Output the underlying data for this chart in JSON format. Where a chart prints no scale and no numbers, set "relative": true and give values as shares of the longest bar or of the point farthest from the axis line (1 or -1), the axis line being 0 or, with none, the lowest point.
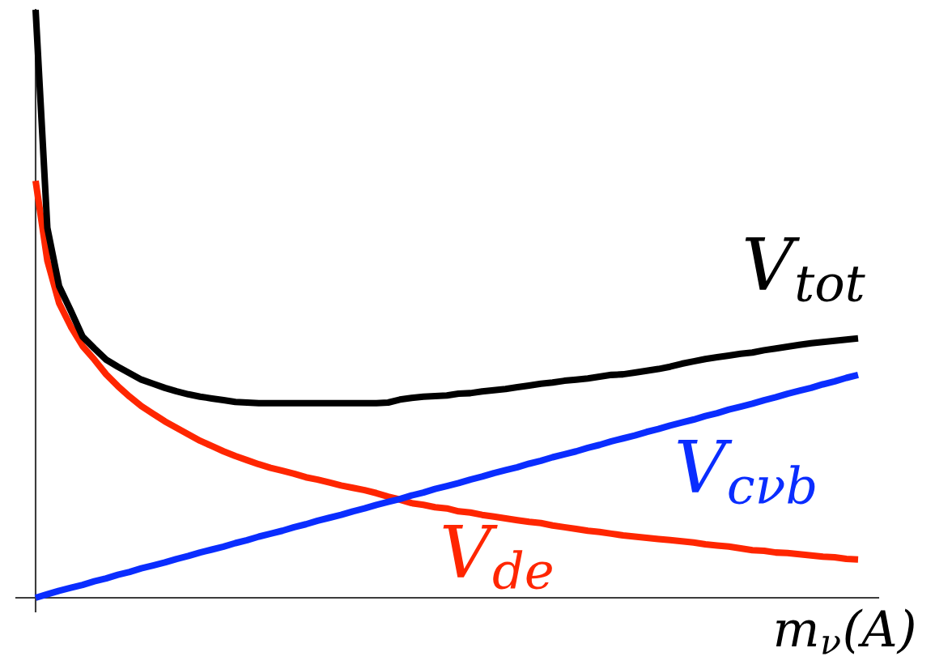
{
  "chart_data": {
    "type": "line",
    "relative": true,
    "line_style": "solid",
    "xlabel": "m$_{ν}$(A)",
    "categories": [
      null,
      null,
      null,
      null,
      null,
      null,
      null,
      null,
      null,
      null,
      null,
      null,
      null,
      null,
      null,
      null,
      null,
      null,
      null,
      null,
      null,
      null,
      null,
      null,
      null,
      null,
      null,
      null,
      null,
      null,
      null,
      null,
      null,
      null,
      null,
      null,
      null,
      null,
      null,
      null,
      null,
      null,
      null,
      null,
      null,
      null,
      null,
      null,
      null,
      null,
      null,
      null,
      null,
      null,
      null,
      null,
      null,
      null,
      null,
      null,
      null,
      null,
      null,
      null,
      null,
      null,
      null,
      null,
      null,
      null,
      null
    ],
    "series": [
      {
        "name": "V$_{tot}$",
        "color": "#000000",
        "values": [
          1.0,
          0.629,
          0.53,
          0.488,
          0.444,
          0.424,
          0.405,
          0.393,
          0.382,
          0.371,
          0.364,
          0.357,
          0.351,
          0.346,
          0.342,
          0.339,
          0.336,
          0.333,
          0.332,
          0.331,
          0.331,
          0.331,
          0.331,
          0.331,
          0.331,
          0.331,
          0.331,
          0.331,
          0.331,
          0.331,
          0.332,
          0.337,
          0.34,
          0.342,
          0.343,
          0.344,
          0.347,
          0.348,
          0.351,
          0.353,
          0.355,
          0.358,
          0.361,
          0.364,
          0.366,
          0.369,
          0.371,
          0.373,
          0.376,
          0.379,
          0.38,
          0.383,
          0.386,
          0.389,
          0.393,
          0.398,
          0.402,
          0.406,
          0.409,
          0.412,
          0.415,
          0.417,
          0.421,
          0.424,
          0.427,
          0.43,
          0.433,
          0.435,
          0.437,
          0.439,
          0.441
        ]
      },
      {
        "name": "V$_{cνb}$",
        "color": "#0a2dff",
        "values": [
          0.0,
          0.006,
          0.012,
          0.017,
          0.022,
          0.028,
          0.033,
          0.039,
          0.044,
          0.05,
          0.055,
          0.06,
          0.066,
          0.071,
          0.077,
          0.082,
          0.087,
          0.093,
          0.098,
          0.104,
          0.109,
          0.114,
          0.12,
          0.125,
          0.131,
          0.136,
          0.141,
          0.147,
          0.152,
          0.158,
          0.163,
          0.168,
          0.174,
          0.179,
          0.185,
          0.19,
          0.195,
          0.201,
          0.206,
          0.212,
          0.217,
          0.222,
          0.228,
          0.233,
          0.239,
          0.244,
          0.249,
          0.255,
          0.26,
          0.266,
          0.271,
          0.276,
          0.282,
          0.287,
          0.293,
          0.298,
          0.303,
          0.309,
          0.314,
          0.32,
          0.325,
          0.33,
          0.336,
          0.341,
          0.347,
          0.352,
          0.357,
          0.363,
          0.368,
          0.374,
          0.379
        ]
      },
      {
        "name": "V$_{de}$",
        "color": "#ff2600",
        "values": [
          0.709,
          0.573,
          0.501,
          0.461,
          0.428,
          0.405,
          0.38,
          0.36,
          0.342,
          0.326,
          0.313,
          0.3,
          0.289,
          0.278,
          0.267,
          0.258,
          0.249,
          0.241,
          0.234,
          0.227,
          0.221,
          0.216,
          0.211,
          0.205,
          0.201,
          0.196,
          0.191,
          0.187,
          0.183,
          0.178,
          0.172,
          0.167,
          0.161,
          0.158,
          0.154,
          0.152,
          0.147,
          0.145,
          0.141,
          0.138,
          0.135,
          0.132,
          0.129,
          0.127,
          0.123,
          0.12,
          0.117,
          0.114,
          0.112,
          0.109,
          0.106,
          0.104,
          0.102,
          0.1,
          0.098,
          0.096,
          0.094,
          0.091,
          0.089,
          0.087,
          0.084,
          0.081,
          0.08,
          0.077,
          0.076,
          0.074,
          0.072,
          0.07,
          0.069,
          0.066,
          0.065
        ]
      }
    ]
  }
}
